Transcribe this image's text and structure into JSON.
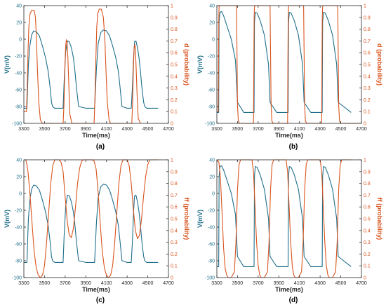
{
  "colors": {
    "voltage": "#1f6f8b",
    "gate": "#d9541e",
    "axis": "#262626"
  },
  "chart_data": [
    {
      "type": "line",
      "panel_label": "(a)",
      "xlabel": "Time(ms)",
      "ylabel": "V(mV)",
      "ylabel_right": "d (probability)",
      "xlim": [
        3300,
        4700
      ],
      "ylim": [
        -100,
        40
      ],
      "ylim_right": [
        0,
        1
      ],
      "xticks": [
        3300,
        3500,
        3700,
        3900,
        4100,
        4300,
        4500,
        4700
      ],
      "yticks": [
        -100,
        -80,
        -60,
        -40,
        -20,
        0,
        20,
        40
      ],
      "yticks_right": [
        0,
        0.1,
        0.2,
        0.3,
        0.4,
        0.5,
        0.6,
        0.7,
        0.8,
        0.9,
        1
      ],
      "grid": false,
      "series": [
        {
          "axis": "left",
          "color": "#1f6f8b",
          "x": [
            3300,
            3318,
            3330,
            3336,
            3344,
            3358,
            3375,
            3395,
            3420,
            3450,
            3480,
            3510,
            3535,
            3555,
            3568,
            3578,
            3600,
            3650,
            3680,
            3690,
            3705,
            3722,
            3740,
            3760,
            3780,
            3795,
            3810,
            3830,
            3900,
            3960,
            3985,
            3993,
            4003,
            4020,
            4045,
            4070,
            4100,
            4130,
            4160,
            4190,
            4215,
            4230,
            4250,
            4300,
            4340,
            4352,
            4362,
            4372,
            4385,
            4400,
            4415,
            4430,
            4445,
            4460,
            4470,
            4490,
            4600
          ],
          "y": [
            -82,
            -82,
            -82,
            -58,
            -30,
            -8,
            5,
            10,
            9,
            4,
            -8,
            -22,
            -38,
            -58,
            -75,
            -80,
            -82,
            -82,
            -82,
            -50,
            -15,
            -2,
            -3,
            -10,
            -22,
            -38,
            -58,
            -80,
            -82,
            -82,
            -82,
            -60,
            -35,
            -5,
            8,
            11,
            10,
            4,
            -8,
            -22,
            -38,
            -55,
            -80,
            -82,
            -82,
            -55,
            -22,
            -3,
            -2,
            -10,
            -22,
            -40,
            -60,
            -75,
            -80,
            -82,
            -82
          ]
        },
        {
          "axis": "right",
          "color": "#d9541e",
          "x": [
            3300,
            3326,
            3332,
            3340,
            3348,
            3360,
            3375,
            3400,
            3412,
            3420,
            3432,
            3445,
            3460,
            3480,
            3500,
            3680,
            3688,
            3697,
            3705,
            3712,
            3718,
            3727,
            3736,
            3745,
            3765,
            3980,
            3988,
            3997,
            4006,
            4015,
            4030,
            4050,
            4070,
            4085,
            4095,
            4108,
            4125,
            4140,
            4165,
            4345,
            4352,
            4360,
            4367,
            4374,
            4380,
            4388,
            4398,
            4408,
            4430
          ],
          "y": [
            0.1,
            0.1,
            0.3,
            0.6,
            0.82,
            0.93,
            0.96,
            0.96,
            0.9,
            0.75,
            0.45,
            0.18,
            0.03,
            0.0,
            0.0,
            0.0,
            0.15,
            0.45,
            0.66,
            0.71,
            0.69,
            0.55,
            0.3,
            0.08,
            0.0,
            0.0,
            0.2,
            0.55,
            0.82,
            0.93,
            0.97,
            0.97,
            0.9,
            0.7,
            0.45,
            0.18,
            0.03,
            0.0,
            0.0,
            0.0,
            0.15,
            0.45,
            0.63,
            0.67,
            0.64,
            0.45,
            0.2,
            0.04,
            0.0
          ]
        }
      ]
    },
    {
      "type": "line",
      "panel_label": "(b)",
      "xlabel": "Time(ms)",
      "ylabel": "V(mV)",
      "ylabel_right": "d (probability)",
      "xlim": [
        3300,
        4700
      ],
      "ylim": [
        -100,
        40
      ],
      "ylim_right": [
        0,
        1
      ],
      "xticks": [
        3300,
        3500,
        3700,
        3900,
        4100,
        4300,
        4500,
        4700
      ],
      "yticks": [
        -100,
        -80,
        -60,
        -40,
        -20,
        0,
        20,
        40
      ],
      "yticks_right": [
        0,
        0.1,
        0.2,
        0.3,
        0.4,
        0.5,
        0.6,
        0.7,
        0.8,
        0.9,
        1
      ],
      "grid": false,
      "series": [
        {
          "axis": "left",
          "color": "#1f6f8b",
          "x": [
            3300,
            3318,
            3322,
            3330,
            3345,
            3365,
            3400,
            3440,
            3480,
            3500,
            3560,
            3660,
            3664,
            3672,
            3690,
            3720,
            3760,
            3800,
            3815,
            3880,
            3990,
            3994,
            4002,
            4020,
            4050,
            4090,
            4130,
            4145,
            4210,
            4320,
            4324,
            4332,
            4350,
            4380,
            4420,
            4460,
            4475,
            4600
          ],
          "y": [
            -87,
            -87,
            20,
            32,
            33,
            28,
            15,
            0,
            -25,
            -75,
            -87,
            -87,
            20,
            32,
            31,
            22,
            5,
            -30,
            -75,
            -87,
            -87,
            20,
            32,
            31,
            22,
            5,
            -30,
            -75,
            -87,
            -87,
            20,
            32,
            31,
            22,
            5,
            -30,
            -75,
            -87
          ]
        },
        {
          "axis": "right",
          "color": "#d9541e",
          "x": [
            3300,
            3313,
            3316,
            3319,
            3322,
            3326,
            3340,
            3490,
            3495,
            3500,
            3508,
            3520,
            3655,
            3658,
            3661,
            3664,
            3668,
            3680,
            3815,
            3820,
            3825,
            3833,
            3845,
            3985,
            3988,
            3991,
            3994,
            3998,
            4010,
            4140,
            4145,
            4150,
            4158,
            4170,
            4315,
            4318,
            4321,
            4324,
            4328,
            4340,
            4470,
            4475,
            4480,
            4488,
            4500,
            4700
          ],
          "y": [
            0.1,
            0.1,
            0.5,
            0.9,
            0.99,
            1.0,
            1.0,
            1.0,
            0.6,
            0.15,
            0.02,
            0.0,
            0.0,
            0.5,
            0.9,
            0.99,
            1.0,
            1.0,
            1.0,
            0.6,
            0.15,
            0.02,
            0.0,
            0.0,
            0.5,
            0.9,
            0.99,
            1.0,
            1.0,
            1.0,
            0.6,
            0.15,
            0.02,
            0.0,
            0.0,
            0.5,
            0.9,
            0.99,
            1.0,
            1.0,
            1.0,
            0.6,
            0.15,
            0.02,
            0.0,
            0.0
          ]
        }
      ]
    },
    {
      "type": "line",
      "panel_label": "(c)",
      "xlabel": "Time(ms)",
      "ylabel": "V(mV)",
      "ylabel_right": "ff (probability)",
      "xlim": [
        3300,
        4700
      ],
      "ylim": [
        -100,
        40
      ],
      "ylim_right": [
        0,
        1
      ],
      "xticks": [
        3300,
        3500,
        3700,
        3900,
        4100,
        4300,
        4500,
        4700
      ],
      "yticks": [
        -100,
        -80,
        -60,
        -40,
        -20,
        0,
        20,
        40
      ],
      "yticks_right": [
        0,
        0.1,
        0.2,
        0.3,
        0.4,
        0.5,
        0.6,
        0.7,
        0.8,
        0.9,
        1
      ],
      "grid": false,
      "series": [
        {
          "axis": "left",
          "color": "#1f6f8b",
          "x": [
            3300,
            3318,
            3330,
            3336,
            3344,
            3358,
            3375,
            3395,
            3420,
            3450,
            3480,
            3510,
            3535,
            3555,
            3568,
            3578,
            3600,
            3650,
            3680,
            3690,
            3705,
            3722,
            3740,
            3760,
            3780,
            3795,
            3810,
            3830,
            3900,
            3960,
            3985,
            3993,
            4003,
            4020,
            4045,
            4070,
            4100,
            4130,
            4160,
            4190,
            4215,
            4230,
            4250,
            4300,
            4340,
            4352,
            4362,
            4372,
            4385,
            4400,
            4415,
            4430,
            4445,
            4460,
            4470,
            4490,
            4600
          ],
          "y": [
            -82,
            -82,
            -82,
            -58,
            -30,
            -8,
            5,
            10,
            9,
            4,
            -8,
            -22,
            -38,
            -58,
            -75,
            -80,
            -82,
            -82,
            -82,
            -50,
            -15,
            -2,
            -3,
            -10,
            -22,
            -38,
            -58,
            -80,
            -82,
            -82,
            -82,
            -60,
            -35,
            -5,
            8,
            11,
            10,
            4,
            -8,
            -22,
            -38,
            -55,
            -80,
            -82,
            -82,
            -55,
            -22,
            -3,
            -2,
            -10,
            -22,
            -40,
            -60,
            -75,
            -80,
            -82,
            -82
          ]
        },
        {
          "axis": "right",
          "color": "#d9541e",
          "x": [
            3300,
            3318,
            3325,
            3340,
            3360,
            3380,
            3400,
            3420,
            3440,
            3460,
            3480,
            3500,
            3520,
            3540,
            3560,
            3580,
            3600,
            3620,
            3640,
            3660,
            3680,
            3700,
            3720,
            3740,
            3760,
            3780,
            3800,
            3820,
            3840,
            3860,
            3880,
            3900,
            3920,
            3940,
            3960,
            3980,
            4000,
            4020,
            4040,
            4060,
            4080,
            4100,
            4120,
            4140,
            4160,
            4180,
            4200,
            4220,
            4240,
            4260,
            4280,
            4300,
            4320,
            4340,
            4360,
            4380,
            4400,
            4420,
            4440,
            4460,
            4480,
            4500,
            4520,
            4540,
            4560,
            4580,
            4600
          ],
          "y": [
            1.0,
            1.0,
            0.98,
            0.9,
            0.7,
            0.45,
            0.22,
            0.08,
            0.02,
            0.0,
            0.02,
            0.1,
            0.3,
            0.55,
            0.8,
            0.95,
            1.0,
            1.0,
            1.0,
            0.98,
            0.9,
            0.68,
            0.48,
            0.36,
            0.34,
            0.42,
            0.6,
            0.8,
            0.93,
            0.99,
            1.0,
            1.0,
            1.0,
            1.0,
            1.0,
            0.99,
            0.92,
            0.72,
            0.45,
            0.22,
            0.08,
            0.02,
            0.0,
            0.02,
            0.1,
            0.3,
            0.55,
            0.8,
            0.95,
            1.0,
            1.0,
            1.0,
            0.95,
            0.8,
            0.58,
            0.4,
            0.33,
            0.36,
            0.5,
            0.7,
            0.86,
            0.96,
            1.0,
            1.0,
            1.0,
            1.0,
            1.0
          ]
        }
      ]
    },
    {
      "type": "line",
      "panel_label": "(d)",
      "xlabel": "Time(ms)",
      "ylabel": "V(mV)",
      "ylabel_right": "ff (probability)",
      "xlim": [
        3300,
        4700
      ],
      "ylim": [
        -100,
        40
      ],
      "ylim_right": [
        0,
        1
      ],
      "xticks": [
        3300,
        3500,
        3700,
        3900,
        4100,
        4300,
        4500,
        4700
      ],
      "yticks": [
        -100,
        -80,
        -60,
        -40,
        -20,
        0,
        20,
        40
      ],
      "yticks_right": [
        0,
        0.1,
        0.2,
        0.3,
        0.4,
        0.5,
        0.6,
        0.7,
        0.8,
        0.9,
        1
      ],
      "grid": false,
      "series": [
        {
          "axis": "left",
          "color": "#1f6f8b",
          "x": [
            3300,
            3318,
            3322,
            3330,
            3345,
            3365,
            3400,
            3440,
            3480,
            3500,
            3560,
            3660,
            3664,
            3672,
            3690,
            3720,
            3760,
            3800,
            3815,
            3880,
            3990,
            3994,
            4002,
            4020,
            4050,
            4090,
            4130,
            4145,
            4210,
            4320,
            4324,
            4332,
            4350,
            4380,
            4420,
            4460,
            4475,
            4600
          ],
          "y": [
            -87,
            -87,
            20,
            32,
            33,
            28,
            15,
            0,
            -25,
            -75,
            -87,
            -87,
            20,
            32,
            31,
            22,
            5,
            -30,
            -75,
            -87,
            -87,
            20,
            32,
            31,
            22,
            5,
            -30,
            -75,
            -87,
            -87,
            20,
            32,
            31,
            22,
            5,
            -30,
            -75,
            -87
          ]
        },
        {
          "axis": "right",
          "color": "#d9541e",
          "x": [
            3300,
            3320,
            3335,
            3350,
            3365,
            3380,
            3395,
            3410,
            3440,
            3470,
            3485,
            3500,
            3515,
            3530,
            3560,
            3640,
            3655,
            3670,
            3685,
            3700,
            3715,
            3730,
            3760,
            3790,
            3805,
            3820,
            3835,
            3850,
            3880,
            3970,
            3985,
            4000,
            4015,
            4030,
            4045,
            4060,
            4090,
            4120,
            4135,
            4150,
            4165,
            4180,
            4210,
            4300,
            4315,
            4330,
            4345,
            4360,
            4375,
            4390,
            4420,
            4450,
            4465,
            4480,
            4495,
            4510,
            4540,
            4600
          ],
          "y": [
            1.0,
            0.98,
            0.85,
            0.55,
            0.25,
            0.08,
            0.02,
            0.0,
            0.0,
            0.05,
            0.3,
            0.75,
            0.96,
            1.0,
            1.0,
            1.0,
            0.9,
            0.6,
            0.3,
            0.1,
            0.02,
            0.0,
            0.0,
            0.05,
            0.3,
            0.75,
            0.96,
            1.0,
            1.0,
            1.0,
            0.9,
            0.6,
            0.3,
            0.1,
            0.02,
            0.0,
            0.0,
            0.05,
            0.3,
            0.75,
            0.96,
            1.0,
            1.0,
            1.0,
            0.9,
            0.6,
            0.3,
            0.1,
            0.02,
            0.0,
            0.0,
            0.05,
            0.3,
            0.75,
            0.96,
            1.0,
            1.0,
            1.0
          ]
        }
      ]
    }
  ]
}
